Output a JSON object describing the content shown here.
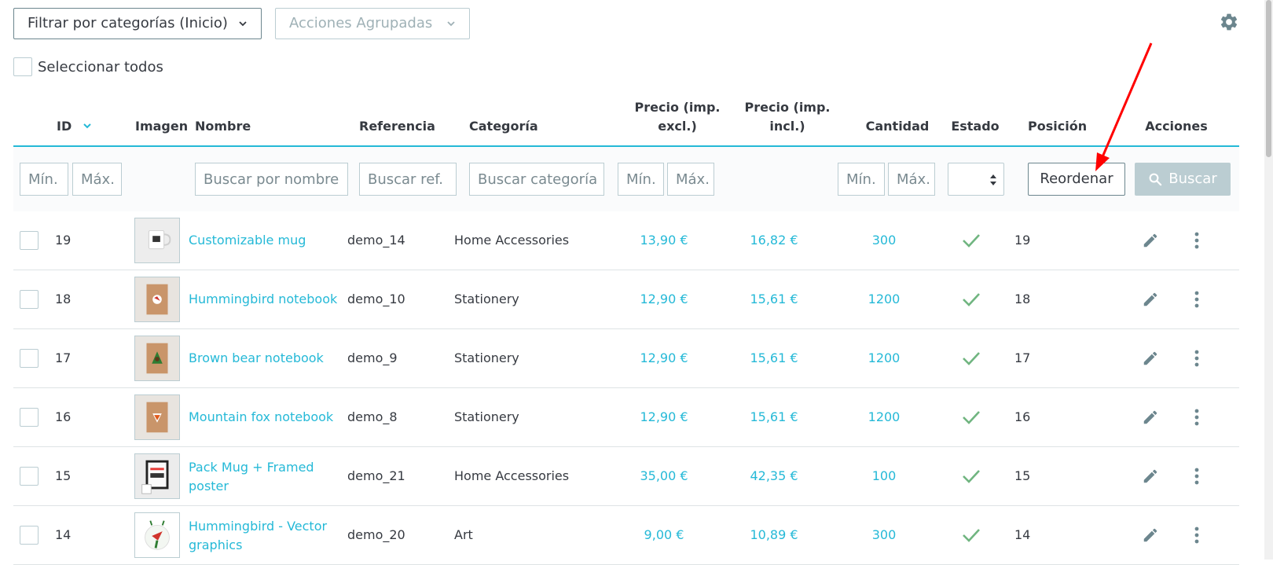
{
  "toolbar": {
    "filter_categories": "Filtrar por categorías (Inicio)",
    "bulk_actions": "Acciones Agrupadas",
    "select_all": "Seleccionar todos"
  },
  "table": {
    "headers": {
      "id": "ID",
      "image": "Imagen",
      "name": "Nombre",
      "reference": "Referencia",
      "category": "Categoría",
      "price_excl_1": "Precio (imp.",
      "price_excl_2": "excl.)",
      "price_incl_1": "Precio (imp.",
      "price_incl_2": "incl.)",
      "quantity": "Cantidad",
      "status": "Estado",
      "position": "Posición",
      "actions": "Acciones"
    },
    "filters": {
      "id_min": "Mín.",
      "id_max": "Máx.",
      "name": "Buscar por nombre",
      "reference": "Buscar ref.",
      "category": "Buscar categoría",
      "price_min": "Mín.",
      "price_max": "Máx.",
      "qty_min": "Mín.",
      "qty_max": "Máx.",
      "reorder": "Reordenar",
      "search": "Buscar"
    },
    "rows": [
      {
        "id": "19",
        "name_1": "Customizable mug",
        "name_2": "",
        "ref": "demo_14",
        "cat": "Home Accessories",
        "price_excl": "13,90 €",
        "price_incl": "16,82 €",
        "qty": "300",
        "pos": "19",
        "thumb": "mug"
      },
      {
        "id": "18",
        "name_1": "Hummingbird notebook",
        "name_2": "",
        "ref": "demo_10",
        "cat": "Stationery",
        "price_excl": "12,90 €",
        "price_incl": "15,61 €",
        "qty": "1200",
        "pos": "18",
        "thumb": "notebook-bird"
      },
      {
        "id": "17",
        "name_1": "Brown bear notebook",
        "name_2": "",
        "ref": "demo_9",
        "cat": "Stationery",
        "price_excl": "12,90 €",
        "price_incl": "15,61 €",
        "qty": "1200",
        "pos": "17",
        "thumb": "notebook-bear"
      },
      {
        "id": "16",
        "name_1": "Mountain fox notebook",
        "name_2": "",
        "ref": "demo_8",
        "cat": "Stationery",
        "price_excl": "12,90 €",
        "price_incl": "15,61 €",
        "qty": "1200",
        "pos": "16",
        "thumb": "notebook-fox"
      },
      {
        "id": "15",
        "name_1": "Pack Mug + Framed",
        "name_2": "poster",
        "ref": "demo_21",
        "cat": "Home Accessories",
        "price_excl": "35,00 €",
        "price_incl": "42,35 €",
        "qty": "100",
        "pos": "15",
        "thumb": "poster"
      },
      {
        "id": "14",
        "name_1": "Hummingbird - Vector",
        "name_2": "graphics",
        "ref": "demo_20",
        "cat": "Art",
        "price_excl": "9,00 €",
        "price_incl": "10,89 €",
        "qty": "300",
        "pos": "14",
        "thumb": "vector"
      }
    ]
  },
  "icons": {
    "chevron": "chevron-down-icon",
    "gear": "gear-icon",
    "sort": "sort-desc-icon",
    "search": "search-icon",
    "check": "check-icon",
    "edit": "pencil-icon",
    "more": "more-vert-icon",
    "annotation": "red-arrow-annotation"
  },
  "colors": {
    "accent": "#25b9d7",
    "check": "#70b580",
    "annotation": "#ff0000"
  }
}
